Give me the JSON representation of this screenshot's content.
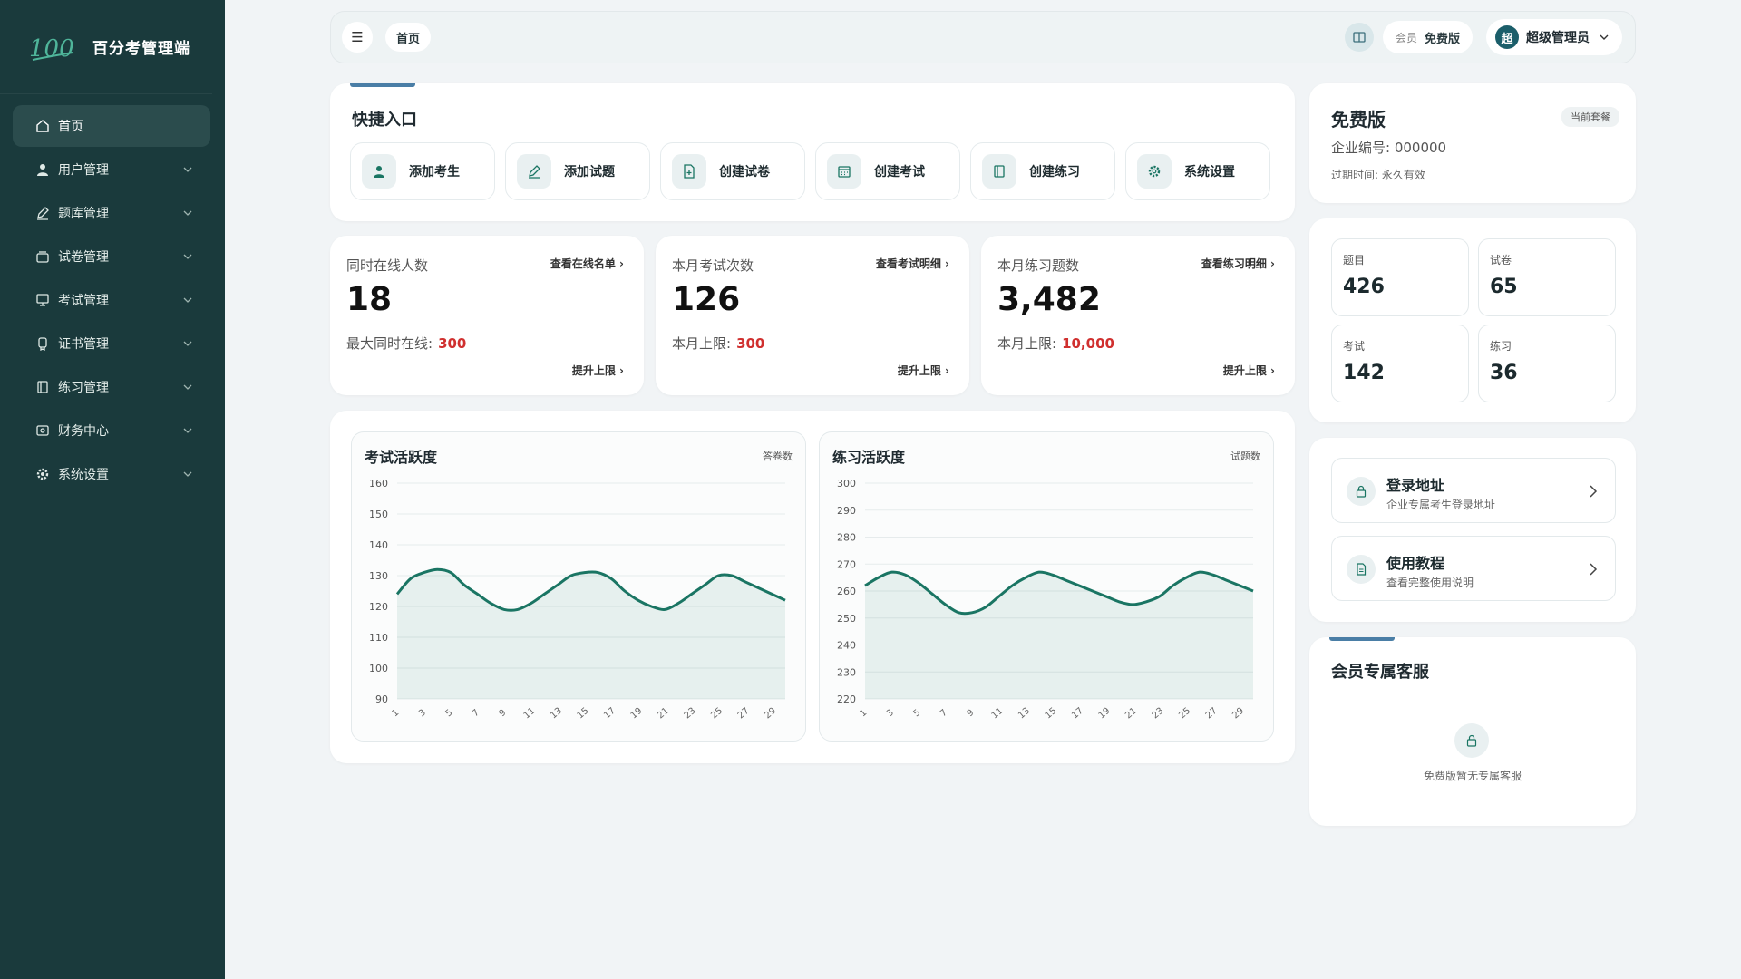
{
  "sidebar": {
    "brand_name": "百分考管理端",
    "items": [
      {
        "label": "首页",
        "icon": "home-icon"
      },
      {
        "label": "用户管理",
        "icon": "user-icon"
      },
      {
        "label": "题库管理",
        "icon": "pen-icon"
      },
      {
        "label": "试卷管理",
        "icon": "archive-icon"
      },
      {
        "label": "考试管理",
        "icon": "monitor-icon"
      },
      {
        "label": "证书管理",
        "icon": "certificate-icon"
      },
      {
        "label": "练习管理",
        "icon": "book-icon"
      },
      {
        "label": "财务中心",
        "icon": "finance-icon"
      },
      {
        "label": "系统设置",
        "icon": "gear-icon"
      }
    ]
  },
  "header": {
    "breadcrumb": "首页",
    "member_label": "会员",
    "member_plan": "免费版",
    "avatar_text": "超",
    "user_name": "超级管理员"
  },
  "quick": {
    "title": "快捷入口",
    "buttons": [
      {
        "label": "添加考生",
        "icon": "user-add-icon"
      },
      {
        "label": "添加试题",
        "icon": "pen-icon"
      },
      {
        "label": "创建试卷",
        "icon": "document-add-icon"
      },
      {
        "label": "创建考试",
        "icon": "calendar-icon"
      },
      {
        "label": "创建练习",
        "icon": "book-icon"
      },
      {
        "label": "系统设置",
        "icon": "gear-icon"
      }
    ]
  },
  "stats": [
    {
      "label": "同时在线人数",
      "link": "查看在线名单",
      "value": "18",
      "limit_label": "最大同时在线:",
      "limit_value": "300",
      "raise": "提升上限"
    },
    {
      "label": "本月考试次数",
      "link": "查看考试明细",
      "value": "126",
      "limit_label": "本月上限:",
      "limit_value": "300",
      "raise": "提升上限"
    },
    {
      "label": "本月练习题数",
      "link": "查看练习明细",
      "value": "3,482",
      "limit_label": "本月上限:",
      "limit_value": "10,000",
      "raise": "提升上限"
    }
  ],
  "chart_data": [
    {
      "type": "area",
      "title": "考试活跃度",
      "legend": "答卷数",
      "ylim": [
        90,
        160
      ],
      "yticks": [
        90,
        100,
        110,
        120,
        130,
        140,
        150,
        160
      ],
      "x": [
        1,
        2,
        3,
        4,
        5,
        6,
        7,
        8,
        9,
        10,
        11,
        12,
        13,
        14,
        15,
        16,
        17,
        18,
        19,
        20,
        21,
        22,
        23,
        24,
        25,
        26,
        27,
        28,
        29,
        30
      ],
      "xticks": [
        1,
        3,
        5,
        7,
        9,
        11,
        13,
        15,
        17,
        19,
        21,
        23,
        25,
        27,
        29
      ],
      "series": [
        {
          "values": [
            124,
            129,
            131,
            132,
            131,
            127,
            124,
            121,
            119,
            119,
            121,
            124,
            127,
            130,
            131,
            131,
            129,
            125,
            122,
            120,
            119,
            121,
            124,
            127,
            130,
            130,
            128,
            126,
            124,
            122
          ]
        }
      ],
      "color": "#1a7563"
    },
    {
      "type": "area",
      "title": "练习活跃度",
      "legend": "试题数",
      "ylim": [
        220,
        300
      ],
      "yticks": [
        220,
        230,
        240,
        250,
        260,
        270,
        280,
        290,
        300
      ],
      "x": [
        1,
        2,
        3,
        4,
        5,
        6,
        7,
        8,
        9,
        10,
        11,
        12,
        13,
        14,
        15,
        16,
        17,
        18,
        19,
        20,
        21,
        22,
        23,
        24,
        25,
        26,
        27,
        28,
        29,
        30
      ],
      "xticks": [
        1,
        3,
        5,
        7,
        9,
        11,
        13,
        15,
        17,
        19,
        21,
        23,
        25,
        27,
        29
      ],
      "series": [
        {
          "values": [
            262,
            265,
            267,
            266,
            263,
            259,
            255,
            252,
            252,
            254,
            258,
            262,
            265,
            267,
            266,
            264,
            262,
            260,
            258,
            256,
            255,
            256,
            258,
            262,
            265,
            267,
            266,
            264,
            262,
            260
          ]
        }
      ],
      "color": "#1a7563"
    }
  ],
  "plan": {
    "title": "免费版",
    "badge": "当前套餐",
    "enterprise": "企业编号: 000000",
    "expire": "过期时间: 永久有效"
  },
  "counts": [
    {
      "label": "题目",
      "value": "426"
    },
    {
      "label": "试卷",
      "value": "65"
    },
    {
      "label": "考试",
      "value": "142"
    },
    {
      "label": "练习",
      "value": "36"
    }
  ],
  "links": [
    {
      "title": "登录地址",
      "sub": "企业专属考生登录地址",
      "icon": "lock-icon"
    },
    {
      "title": "使用教程",
      "sub": "查看完整使用说明",
      "icon": "document-icon"
    }
  ],
  "service": {
    "title": "会员专属客服",
    "empty_text": "免费版暂无专属客服"
  },
  "colors": {
    "sidebar_bg": "#1a3a3c",
    "accent": "#1a7563",
    "danger": "#d0302f"
  }
}
